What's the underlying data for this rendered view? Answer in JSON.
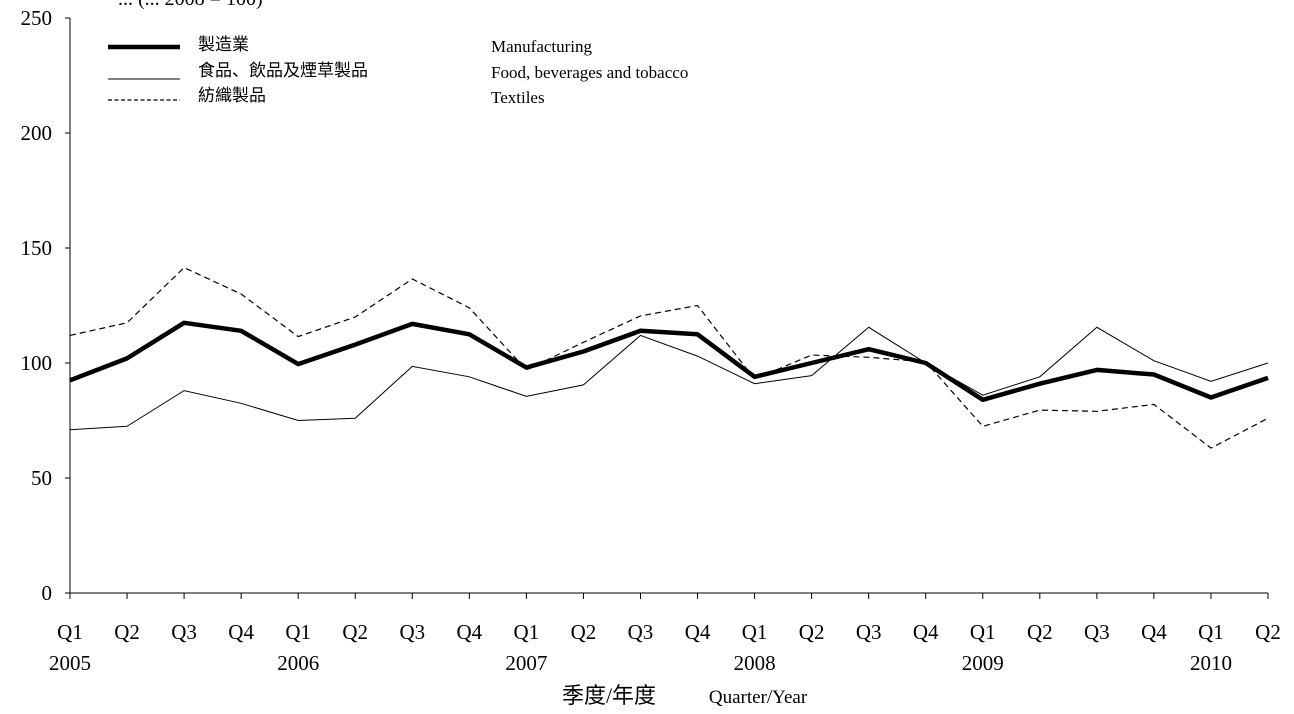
{
  "chart_data": {
    "type": "line",
    "title": "",
    "ylabel_partial": "... (... 2008 = 100)",
    "ylim": [
      0,
      250
    ],
    "yticks": [
      "0",
      "50",
      "100",
      "150",
      "200",
      "250"
    ],
    "quarter_labels": [
      "Q1",
      "Q2",
      "Q3",
      "Q4",
      "Q1",
      "Q2",
      "Q3",
      "Q4",
      "Q1",
      "Q2",
      "Q3",
      "Q4",
      "Q1",
      "Q2",
      "Q3",
      "Q4",
      "Q1",
      "Q2",
      "Q3",
      "Q4",
      "Q1",
      "Q2"
    ],
    "year_labels": [
      "2005",
      "2006",
      "2007",
      "2008",
      "2009",
      "2010"
    ],
    "xlabel_zh": "季度/年度",
    "xlabel_en": "Quarter/Year",
    "categories": [
      "2005 Q1",
      "2005 Q2",
      "2005 Q3",
      "2005 Q4",
      "2006 Q1",
      "2006 Q2",
      "2006 Q3",
      "2006 Q4",
      "2007 Q1",
      "2007 Q2",
      "2007 Q3",
      "2007 Q4",
      "2008 Q1",
      "2008 Q2",
      "2008 Q3",
      "2008 Q4",
      "2009 Q1",
      "2009 Q2",
      "2009 Q3",
      "2009 Q4",
      "2010 Q1",
      "2010 Q2"
    ],
    "grid": false,
    "legend_position": "top-left",
    "series": [
      {
        "name_zh": "製造業",
        "name_en": "Manufacturing",
        "style": "thick",
        "values": [
          92.5,
          102,
          117.5,
          114,
          99.5,
          108,
          117,
          112.5,
          98,
          105,
          114,
          112.5,
          94,
          100,
          106,
          100,
          84,
          91,
          97,
          95,
          85,
          93.5
        ]
      },
      {
        "name_zh": "食品、飲品及煙草製品",
        "name_en": "Food, beverages and tobacco",
        "style": "thin",
        "values": [
          71,
          72.5,
          88,
          82.5,
          75,
          76,
          98.5,
          94,
          85.5,
          90.5,
          112,
          103,
          91,
          94.5,
          115.5,
          100,
          86,
          94,
          115.5,
          101,
          92,
          100
        ]
      },
      {
        "name_zh": "紡織製品",
        "name_en": "Textiles",
        "style": "dashed",
        "values": [
          112,
          117.5,
          141.5,
          130,
          111.5,
          120,
          136.5,
          124,
          97,
          109,
          120.5,
          125,
          93,
          103.5,
          102.5,
          100.5,
          72.5,
          79.5,
          79,
          82,
          63,
          76
        ]
      }
    ]
  }
}
